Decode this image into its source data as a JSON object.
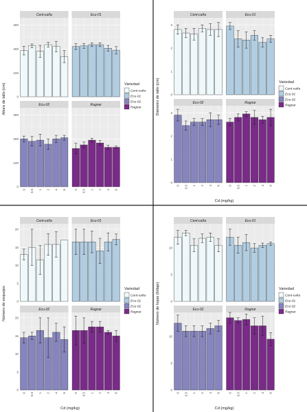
{
  "figure": {
    "legend_title": "Variedad",
    "varieties": [
      "Cent-caña",
      "Ecu-01",
      "Ecu-02",
      "Ragnar"
    ],
    "colors": {
      "Cent-caña": "#eff8fa",
      "Ecu-01": "#b1cde2",
      "Ecu-02": "#8685bf",
      "Ragnar": "#7a2a88",
      "strip": "#d9d9d9",
      "panel": "#ebebeb",
      "grid": "#ffffff",
      "separator": "#1a1a1a"
    }
  },
  "chart_data": [
    {
      "type": "bar",
      "xlabel": "",
      "ylabel": "Altura de tallo (cm)",
      "categories": [
        "0",
        "0.5",
        "1",
        "2",
        "4",
        "6"
      ],
      "yticks": [
        0,
        100,
        200,
        300
      ],
      "ylim": [
        0,
        330
      ],
      "series": [
        {
          "name": "Cent-caña",
          "values": [
            193,
            213,
            190,
            218,
            210,
            168
          ],
          "errors": [
            18,
            8,
            25,
            10,
            22,
            25
          ]
        },
        {
          "name": "Ecu-01",
          "values": [
            210,
            213,
            218,
            218,
            203,
            195
          ],
          "errors": [
            12,
            10,
            8,
            8,
            12,
            15
          ]
        },
        {
          "name": "Ecu-02",
          "values": [
            200,
            190,
            195,
            178,
            200,
            205
          ],
          "errors": [
            12,
            20,
            25,
            22,
            15,
            10
          ]
        },
        {
          "name": "Ragnar",
          "values": [
            160,
            175,
            195,
            183,
            165,
            165
          ],
          "errors": [
            22,
            12,
            8,
            10,
            8,
            5
          ]
        }
      ]
    },
    {
      "type": "bar",
      "xlabel": "Cd (mg/kg)",
      "ylabel": "Diámetro de tallo (cm)",
      "categories": [
        "0",
        "0.5",
        "1",
        "2",
        "4",
        "6"
      ],
      "yticks": [
        0,
        1,
        2,
        3
      ],
      "ylim": [
        0,
        3.3
      ],
      "series": [
        {
          "name": "Cent-caña",
          "values": [
            2.8,
            2.65,
            2.6,
            2.85,
            2.8,
            2.8
          ],
          "errors": [
            0.2,
            0.2,
            0.25,
            0.15,
            0.25,
            0.3
          ]
        },
        {
          "name": "Ecu-01",
          "values": [
            2.95,
            2.4,
            2.35,
            2.55,
            2.25,
            2.4
          ],
          "errors": [
            0.15,
            0.35,
            0.35,
            0.2,
            0.2,
            0.15
          ]
        },
        {
          "name": "Ecu-02",
          "values": [
            2.9,
            2.45,
            2.6,
            2.6,
            2.7,
            2.7
          ],
          "errors": [
            0.25,
            0.2,
            0.15,
            0.15,
            0.3,
            0.2
          ]
        },
        {
          "name": "Ragnar",
          "values": [
            2.6,
            2.8,
            2.95,
            2.8,
            2.7,
            2.8
          ],
          "errors": [
            0.15,
            0.15,
            0.1,
            0.3,
            0.15,
            0.35
          ]
        }
      ]
    },
    {
      "type": "bar",
      "xlabel": "Cd (mg/kg)",
      "ylabel": "Número de esquejes",
      "categories": [
        "0",
        "0.5",
        "1",
        "2",
        "4",
        "6"
      ],
      "yticks": [
        0,
        5,
        10,
        15,
        20
      ],
      "ylim": [
        0,
        21.5
      ],
      "series": [
        {
          "name": "Cent-caña",
          "values": [
            13,
            15,
            11.5,
            15.8,
            15.8,
            17
          ],
          "errors": [
            1.5,
            5,
            4,
            3,
            3.5,
            0
          ]
        },
        {
          "name": "Ecu-01",
          "values": [
            16.5,
            16.5,
            16.5,
            14,
            16.5,
            17.2
          ],
          "errors": [
            3.5,
            3.5,
            3,
            3.5,
            2.5,
            1.5
          ]
        },
        {
          "name": "Ecu-02",
          "values": [
            14.5,
            15,
            16.5,
            14.5,
            16,
            14
          ],
          "errors": [
            1.5,
            1,
            3.5,
            5.5,
            2.5,
            3.5
          ]
        },
        {
          "name": "Ragnar",
          "values": [
            16.5,
            16.5,
            17.5,
            17.5,
            16,
            15
          ],
          "errors": [
            4,
            3.5,
            1.5,
            1.5,
            0.5,
            1.5
          ]
        }
      ]
    },
    {
      "type": "bar",
      "xlabel": "Cd (mg/kg)",
      "ylabel": "Número de hojas (follaje)",
      "categories": [
        "0",
        "0.5",
        "1",
        "2",
        "4",
        "6"
      ],
      "yticks": [
        0,
        5,
        10
      ],
      "ylim": [
        0,
        14.5
      ],
      "series": [
        {
          "name": "Cent-caña",
          "values": [
            12,
            12.8,
            10.5,
            11.8,
            12,
            10.5
          ],
          "errors": [
            1.3,
            0.5,
            1.2,
            0.8,
            0.8,
            1.2
          ]
        },
        {
          "name": "Ecu-01",
          "values": [
            12,
            10.5,
            11,
            10,
            10.5,
            10.8
          ],
          "errors": [
            1.5,
            1.5,
            1.5,
            0.8,
            0.4,
            0.3
          ]
        },
        {
          "name": "Ecu-02",
          "values": [
            12.5,
            11,
            11,
            11,
            11.5,
            12
          ],
          "errors": [
            1.5,
            1,
            1,
            1,
            1,
            1
          ]
        },
        {
          "name": "Ragnar",
          "values": [
            13.5,
            13,
            13.2,
            12,
            12,
            9.5
          ],
          "errors": [
            1,
            0.5,
            1,
            1.5,
            1.8,
            1.2
          ]
        }
      ]
    }
  ]
}
